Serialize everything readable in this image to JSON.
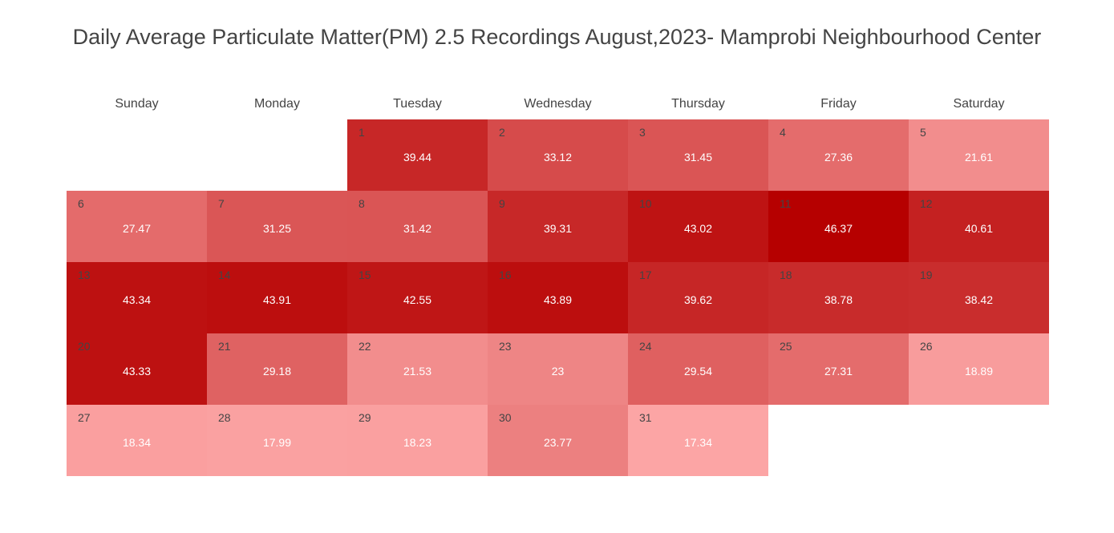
{
  "chart_data": {
    "type": "heatmap",
    "title": "Daily Average Particulate Matter(PM) 2.5 Recordings August,2023- Mamprobi Neighbourhood Center",
    "weekdays": [
      "Sunday",
      "Monday",
      "Tuesday",
      "Wednesday",
      "Thursday",
      "Friday",
      "Saturday"
    ],
    "first_weekday_index": 2,
    "days": [
      1,
      2,
      3,
      4,
      5,
      6,
      7,
      8,
      9,
      10,
      11,
      12,
      13,
      14,
      15,
      16,
      17,
      18,
      19,
      20,
      21,
      22,
      23,
      24,
      25,
      26,
      27,
      28,
      29,
      30,
      31
    ],
    "values": [
      39.44,
      33.12,
      31.45,
      27.36,
      21.61,
      27.47,
      31.25,
      31.42,
      39.31,
      43.02,
      46.37,
      40.61,
      43.34,
      43.91,
      42.55,
      43.89,
      39.62,
      38.78,
      38.42,
      43.33,
      29.18,
      21.53,
      23,
      29.54,
      27.31,
      18.89,
      18.34,
      17.99,
      18.23,
      23.77,
      17.34
    ],
    "color_scale": {
      "low_value": 17.34,
      "high_value": 46.37,
      "low_color": "#fca5a5",
      "high_color": "#b60000"
    },
    "grid": false,
    "legend": "none"
  }
}
